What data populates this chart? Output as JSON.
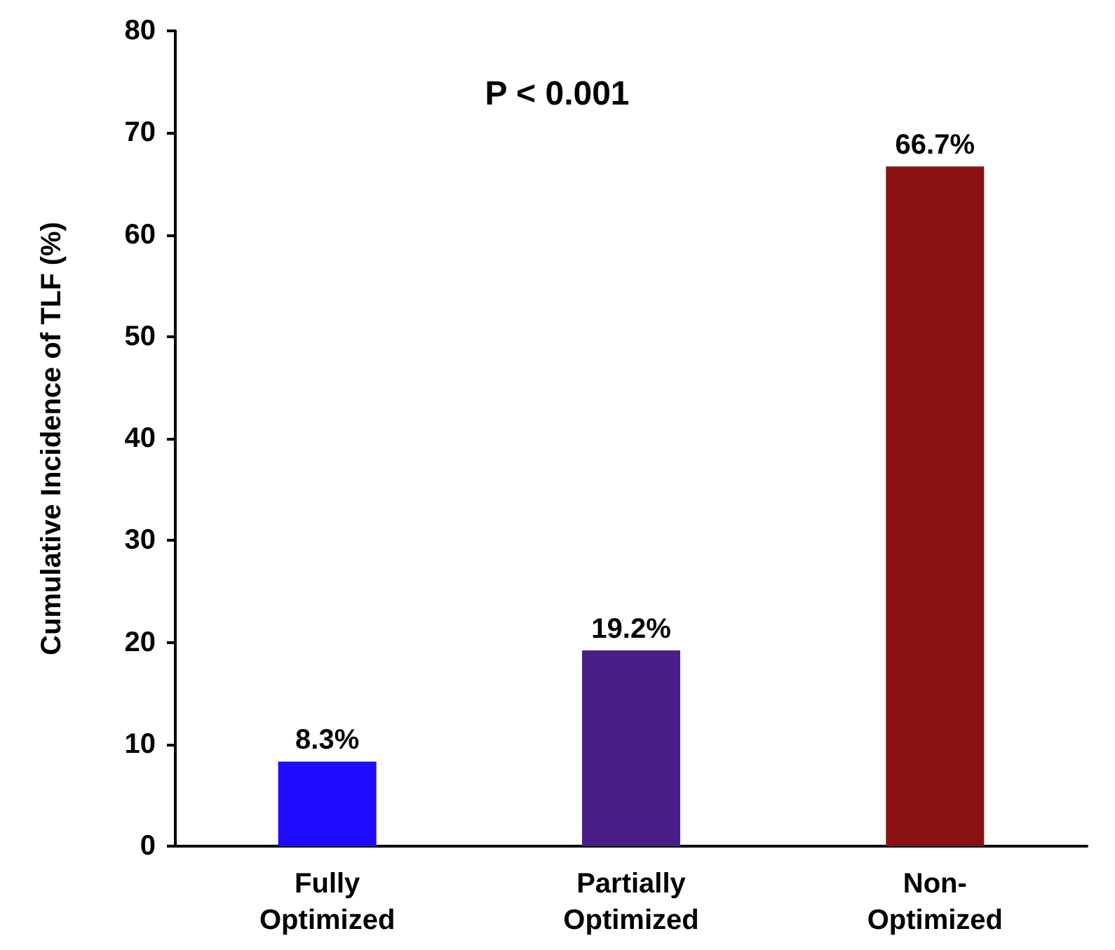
{
  "chart_data": {
    "type": "bar",
    "ylabel": "Cumulative Incidence of TLF (%)",
    "categories": [
      "Fully Optimized",
      "Partially Optimized",
      "Non-Optimized"
    ],
    "values": [
      8.3,
      19.2,
      66.7
    ],
    "colors": [
      "#1f0bff",
      "#4a1e88",
      "#8a1212"
    ],
    "value_labels": [
      "8.3%",
      "19.2%",
      "66.7%"
    ],
    "annotations": [
      "P < 0.001"
    ],
    "ylim": [
      0,
      80
    ],
    "yticks": [
      0,
      10,
      20,
      30,
      40,
      50,
      60,
      70,
      80
    ],
    "grid": false
  }
}
